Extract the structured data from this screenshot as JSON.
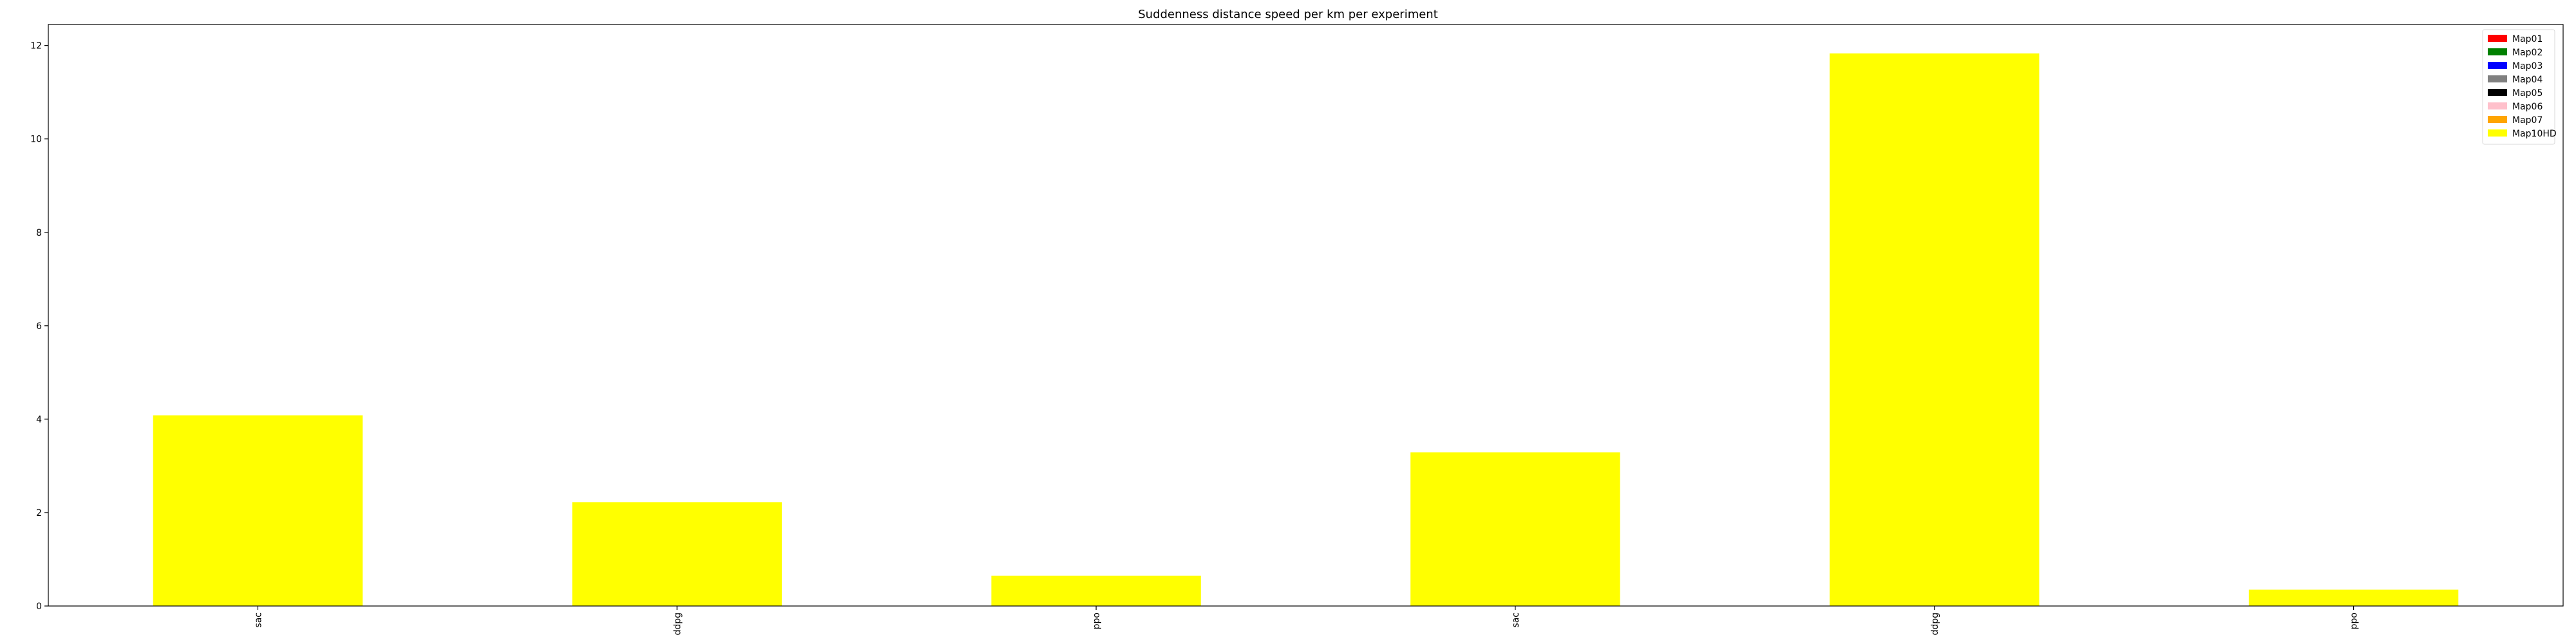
{
  "chart_data": {
    "type": "bar",
    "title": "Suddenness distance speed per km per experiment",
    "xlabel": "",
    "ylabel": "",
    "categories": [
      "sac",
      "ddpg",
      "ppo",
      "sac",
      "ddpg",
      "ppo"
    ],
    "series": [
      {
        "name": "Map01",
        "color": "#ff0000",
        "values": [
          0,
          0,
          0,
          0,
          0,
          0
        ]
      },
      {
        "name": "Map02",
        "color": "#008000",
        "values": [
          0,
          0,
          0,
          0,
          0,
          0
        ]
      },
      {
        "name": "Map03",
        "color": "#0000ff",
        "values": [
          0,
          0,
          0,
          0,
          0,
          0
        ]
      },
      {
        "name": "Map04",
        "color": "#808080",
        "values": [
          0,
          0,
          0,
          0,
          0,
          0
        ]
      },
      {
        "name": "Map05",
        "color": "#000000",
        "values": [
          0,
          0,
          0,
          0,
          0,
          0
        ]
      },
      {
        "name": "Map06",
        "color": "#ffc0cb",
        "values": [
          0,
          0,
          0,
          0,
          0,
          0
        ]
      },
      {
        "name": "Map07",
        "color": "#ffa500",
        "values": [
          0,
          0,
          0,
          0,
          0,
          0
        ]
      },
      {
        "name": "Map10HD",
        "color": "#ffff00",
        "values": [
          4.08,
          2.22,
          0.65,
          3.29,
          11.83,
          0.35
        ]
      }
    ],
    "ylim": [
      0,
      12.45
    ],
    "yticks": [
      "0",
      "2",
      "4",
      "6",
      "8",
      "10",
      "12"
    ],
    "legend_position": "top-right",
    "grid": false
  }
}
